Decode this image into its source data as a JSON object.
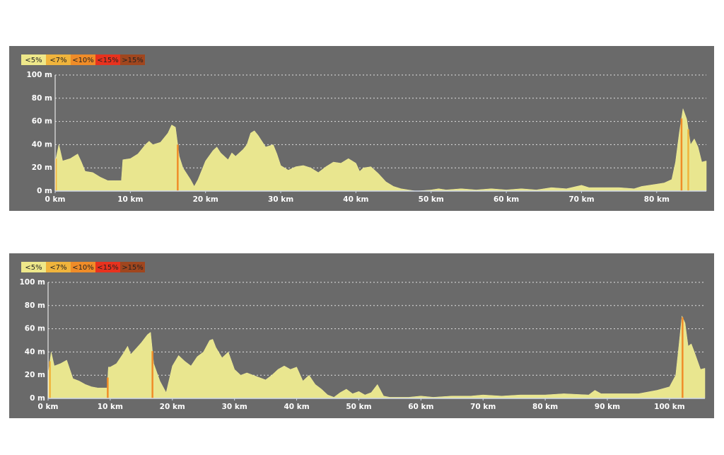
{
  "chart_data": [
    {
      "type": "area",
      "color": "#e9e68f",
      "legend": [
        {
          "name": "<5%",
          "color": "#eee88a"
        },
        {
          "name": "<7%",
          "color": "#f0b43c"
        },
        {
          "name": "<10%",
          "color": "#f08c28"
        },
        {
          "name": "<15%",
          "color": "#e8321e"
        },
        {
          "name": ">15%",
          "color": "#a0461e"
        }
      ],
      "x": [
        0,
        0.5,
        1,
        2,
        3,
        3.5,
        4,
        5,
        6,
        7,
        8,
        8.8,
        9,
        10,
        11,
        12,
        12.5,
        13,
        14,
        15,
        15.5,
        16,
        16.5,
        17,
        18,
        18.5,
        19,
        20,
        21,
        21.5,
        22,
        23,
        23.5,
        24,
        25,
        25.5,
        26,
        26.5,
        27,
        28,
        29,
        29.5,
        30,
        31,
        32,
        33,
        34,
        35,
        36,
        37,
        38,
        39,
        40,
        40.5,
        41,
        42,
        43,
        44,
        45,
        46,
        47,
        48,
        50,
        51,
        52,
        54,
        56,
        58,
        60,
        62,
        64,
        66,
        68,
        70,
        71,
        73,
        75,
        77,
        78,
        80,
        81,
        82,
        82.5,
        83,
        83.5,
        84,
        84.5,
        85,
        85.5,
        86,
        86.6
      ],
      "values": [
        25,
        40,
        26,
        28,
        32,
        25,
        17,
        16,
        12,
        9,
        9,
        9,
        27,
        28,
        32,
        40,
        43,
        40,
        42,
        50,
        57,
        55,
        30,
        20,
        10,
        4,
        10,
        26,
        35,
        38,
        33,
        27,
        33,
        30,
        36,
        40,
        50,
        52,
        48,
        38,
        40,
        32,
        22,
        18,
        21,
        22,
        20,
        16,
        21,
        25,
        24,
        28,
        24,
        17,
        20,
        21,
        15,
        8,
        4,
        2,
        1,
        0,
        1,
        2,
        1,
        2,
        1,
        2,
        1,
        2,
        1,
        3,
        2,
        5,
        3,
        3,
        3,
        2,
        4,
        6,
        7,
        10,
        25,
        50,
        71,
        62,
        40,
        45,
        38,
        25,
        26
      ],
      "highlights": [
        {
          "x": 0.1,
          "level": 1
        },
        {
          "x": 16.3,
          "level": 2
        },
        {
          "x": 83.3,
          "level": 2
        },
        {
          "x": 84.2,
          "level": 1
        }
      ],
      "xlim": [
        0,
        86.6
      ],
      "ylim": [
        0,
        100
      ],
      "xticks": [
        {
          "value": 0,
          "label": "0 km"
        },
        {
          "value": 10,
          "label": "10 km"
        },
        {
          "value": 20,
          "label": "20 km"
        },
        {
          "value": 30,
          "label": "30 km"
        },
        {
          "value": 40,
          "label": "40 km"
        },
        {
          "value": 50,
          "label": "50 km"
        },
        {
          "value": 60,
          "label": "60 km"
        },
        {
          "value": 70,
          "label": "70 km"
        },
        {
          "value": 80,
          "label": "80 km"
        }
      ],
      "yticks": [
        {
          "value": 0,
          "label": "0 m"
        },
        {
          "value": 20,
          "label": "20 m"
        },
        {
          "value": 40,
          "label": "40 m"
        },
        {
          "value": 60,
          "label": "60 m"
        },
        {
          "value": 80,
          "label": "80 m"
        },
        {
          "value": 100,
          "label": "100 m"
        }
      ],
      "grid": true
    },
    {
      "type": "area",
      "color": "#e9e68f",
      "legend": [
        {
          "name": "<5%",
          "color": "#eee88a"
        },
        {
          "name": "<7%",
          "color": "#f0b43c"
        },
        {
          "name": "<10%",
          "color": "#f08c28"
        },
        {
          "name": "<15%",
          "color": "#e8321e"
        },
        {
          "name": ">15%",
          "color": "#a0461e"
        }
      ],
      "x": [
        0,
        0.5,
        1,
        2,
        3,
        3.5,
        4,
        5,
        6,
        7,
        8,
        9.5,
        9.7,
        10,
        11,
        12,
        12.8,
        13.3,
        14,
        15,
        16,
        16.5,
        17,
        18,
        19,
        20,
        21,
        22,
        23,
        24,
        25,
        26,
        26.5,
        27,
        28,
        29,
        30,
        31,
        32,
        33,
        34,
        35,
        36,
        37,
        38,
        39,
        40,
        41,
        42,
        43,
        44,
        45,
        46,
        47,
        48,
        49,
        50,
        51,
        52,
        53,
        54,
        55,
        58,
        60,
        62,
        65,
        68,
        70,
        73,
        76,
        80,
        83,
        87,
        88,
        89,
        92,
        95,
        98,
        100,
        101,
        101.5,
        102,
        102.5,
        103,
        103.5,
        104,
        105,
        105.7
      ],
      "values": [
        20,
        40,
        28,
        30,
        33,
        25,
        17,
        15,
        12,
        10,
        9,
        9,
        27,
        27,
        30,
        38,
        45,
        38,
        42,
        48,
        55,
        57,
        30,
        15,
        5,
        28,
        37,
        32,
        28,
        36,
        40,
        50,
        51,
        44,
        35,
        40,
        25,
        20,
        22,
        20,
        18,
        16,
        20,
        25,
        28,
        25,
        27,
        15,
        20,
        12,
        8,
        3,
        1,
        5,
        8,
        4,
        6,
        3,
        5,
        12,
        2,
        1,
        1,
        2,
        1,
        2,
        2,
        3,
        2,
        3,
        3,
        4,
        3,
        7,
        4,
        4,
        4,
        7,
        10,
        20,
        45,
        71,
        65,
        45,
        47,
        40,
        25,
        26
      ],
      "highlights": [
        {
          "x": 0.3,
          "level": 1
        },
        {
          "x": 9.6,
          "level": 2
        },
        {
          "x": 16.8,
          "level": 2
        },
        {
          "x": 102.1,
          "level": 2
        }
      ],
      "xlim": [
        0,
        105.7
      ],
      "ylim": [
        0,
        100
      ],
      "xticks": [
        {
          "value": 0,
          "label": "0 km"
        },
        {
          "value": 10,
          "label": "10 km"
        },
        {
          "value": 20,
          "label": "20 km"
        },
        {
          "value": 30,
          "label": "30 km"
        },
        {
          "value": 40,
          "label": "40 km"
        },
        {
          "value": 50,
          "label": "50 km"
        },
        {
          "value": 60,
          "label": "60 km"
        },
        {
          "value": 70,
          "label": "70 km"
        },
        {
          "value": 80,
          "label": "80 km"
        },
        {
          "value": 90,
          "label": "90 km"
        },
        {
          "value": 100,
          "label": "100 km"
        }
      ],
      "yticks": [
        {
          "value": 0,
          "label": "0 m"
        },
        {
          "value": 20,
          "label": "20 m"
        },
        {
          "value": 40,
          "label": "40 m"
        },
        {
          "value": 60,
          "label": "60 m"
        },
        {
          "value": 80,
          "label": "80 m"
        },
        {
          "value": 100,
          "label": "100 m"
        }
      ],
      "grid": true
    }
  ]
}
